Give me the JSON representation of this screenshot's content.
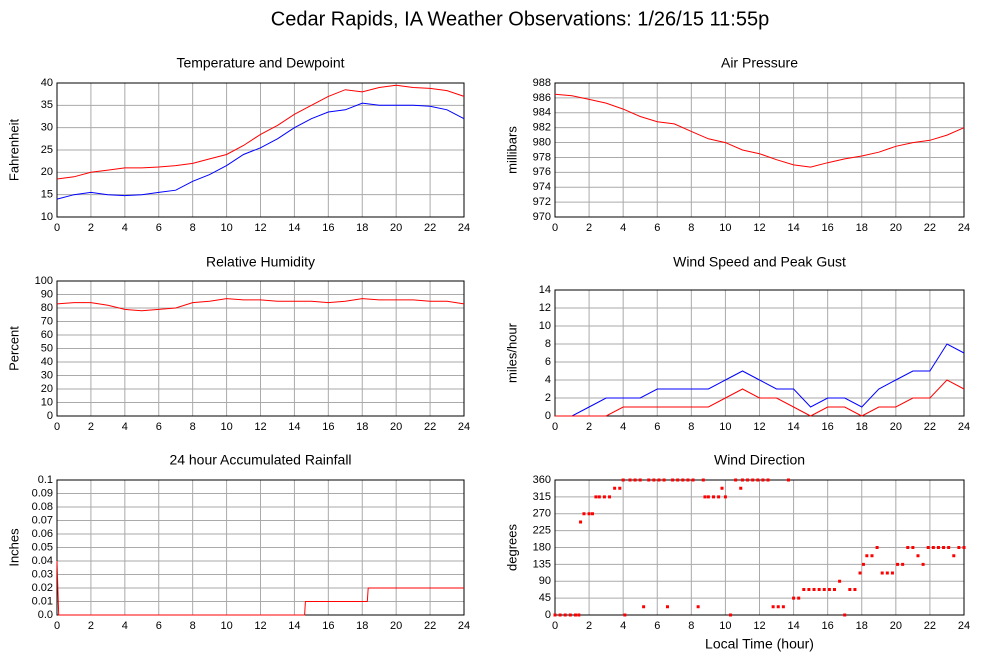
{
  "title": "Cedar Rapids, IA Weather Observations: 1/26/15 11:55p",
  "chart_data": [
    {
      "type": "line",
      "title": "Temperature and Dewpoint",
      "ylabel": "Fahrenheit",
      "xlim": [
        0,
        24
      ],
      "xticks": [
        0,
        2,
        4,
        6,
        8,
        10,
        12,
        14,
        16,
        18,
        20,
        22,
        24
      ],
      "ylim": [
        10,
        40
      ],
      "yticks": [
        10,
        15,
        20,
        25,
        30,
        35,
        40
      ],
      "grid": true,
      "x": [
        0,
        1,
        2,
        3,
        4,
        5,
        6,
        7,
        8,
        9,
        10,
        11,
        12,
        13,
        14,
        15,
        16,
        17,
        18,
        19,
        20,
        21,
        22,
        23,
        24
      ],
      "series": [
        {
          "color": "#ff0000",
          "values": [
            18.5,
            19,
            20,
            20.5,
            21,
            21,
            21.2,
            21.5,
            22,
            23,
            24,
            26,
            28.5,
            30.5,
            33,
            35,
            37,
            38.5,
            38,
            39,
            39.5,
            39,
            38.8,
            38.3,
            37
          ]
        },
        {
          "color": "#0000ff",
          "values": [
            14,
            15,
            15.5,
            15,
            14.8,
            15,
            15.5,
            16,
            18,
            19.5,
            21.5,
            24,
            25.5,
            27.5,
            30,
            32,
            33.5,
            34,
            35.5,
            35,
            35,
            35,
            34.8,
            34,
            32
          ]
        }
      ]
    },
    {
      "type": "line",
      "title": "Air Pressure",
      "ylabel": "millibars",
      "xlim": [
        0,
        24
      ],
      "xticks": [
        0,
        2,
        4,
        6,
        8,
        10,
        12,
        14,
        16,
        18,
        20,
        22,
        24
      ],
      "ylim": [
        970,
        988
      ],
      "yticks": [
        970,
        972,
        974,
        976,
        978,
        980,
        982,
        984,
        986,
        988
      ],
      "grid": true,
      "x": [
        0,
        1,
        2,
        3,
        4,
        5,
        6,
        7,
        8,
        9,
        10,
        11,
        12,
        13,
        14,
        15,
        16,
        17,
        18,
        19,
        20,
        21,
        22,
        23,
        24
      ],
      "series": [
        {
          "color": "#ff0000",
          "values": [
            986.5,
            986.3,
            985.8,
            985.3,
            984.5,
            983.5,
            982.8,
            982.5,
            981.5,
            980.5,
            980,
            979,
            978.5,
            977.7,
            977,
            976.7,
            977.3,
            977.8,
            978.2,
            978.7,
            979.5,
            980,
            980.3,
            981,
            982
          ]
        }
      ]
    },
    {
      "type": "line",
      "title": "Relative Humidity",
      "ylabel": "Percent",
      "xlim": [
        0,
        24
      ],
      "xticks": [
        0,
        2,
        4,
        6,
        8,
        10,
        12,
        14,
        16,
        18,
        20,
        22,
        24
      ],
      "ylim": [
        0,
        100
      ],
      "yticks": [
        0,
        10,
        20,
        30,
        40,
        50,
        60,
        70,
        80,
        90,
        100
      ],
      "grid": true,
      "x": [
        0,
        1,
        2,
        3,
        4,
        5,
        6,
        7,
        8,
        9,
        10,
        11,
        12,
        13,
        14,
        15,
        16,
        17,
        18,
        19,
        20,
        21,
        22,
        23,
        24
      ],
      "series": [
        {
          "color": "#ff0000",
          "values": [
            83,
            84,
            84,
            82,
            79,
            78,
            79,
            80,
            84,
            85,
            87,
            86,
            86,
            85,
            85,
            85,
            84,
            85,
            87,
            86,
            86,
            86,
            85,
            85,
            83
          ]
        }
      ]
    },
    {
      "type": "line",
      "title": "Wind Speed and Peak Gust",
      "ylabel": "miles/hour",
      "xlim": [
        0,
        24
      ],
      "xticks": [
        0,
        2,
        4,
        6,
        8,
        10,
        12,
        14,
        16,
        18,
        20,
        22,
        24
      ],
      "ylim": [
        0,
        14
      ],
      "yticks": [
        0,
        2,
        4,
        6,
        8,
        10,
        12,
        14
      ],
      "grid": true,
      "x": [
        0,
        1,
        2,
        3,
        4,
        5,
        6,
        7,
        8,
        9,
        10,
        11,
        12,
        13,
        14,
        15,
        16,
        17,
        18,
        19,
        20,
        21,
        22,
        23,
        24
      ],
      "series": [
        {
          "color": "#0000ff",
          "values": [
            0,
            0,
            1,
            2,
            2,
            2,
            3,
            3,
            3,
            3,
            4,
            5,
            4,
            3,
            3,
            1,
            2,
            2,
            1,
            3,
            4,
            5,
            5,
            8,
            7
          ]
        },
        {
          "color": "#ff0000",
          "values": [
            0,
            0,
            0,
            0,
            1,
            1,
            1,
            1,
            1,
            1,
            2,
            3,
            2,
            2,
            1,
            0,
            1,
            1,
            0,
            1,
            1,
            2,
            2,
            4,
            3
          ]
        }
      ]
    },
    {
      "type": "line",
      "title": "24 hour Accumulated Rainfall",
      "ylabel": "Inches",
      "xlim": [
        0,
        24
      ],
      "xticks": [
        0,
        2,
        4,
        6,
        8,
        10,
        12,
        14,
        16,
        18,
        20,
        22,
        24
      ],
      "ylim": [
        0,
        0.1
      ],
      "yticks": [
        {
          "value": 0,
          "label": "0.0"
        },
        0.01,
        0.02,
        0.03,
        0.04,
        0.05,
        0.06,
        0.07,
        0.08,
        0.09,
        0.1
      ],
      "grid": true,
      "x": [
        0,
        0.1,
        14.6,
        14.65,
        18.3,
        18.35,
        24
      ],
      "series": [
        {
          "color": "#ff0000",
          "values": [
            0.04,
            0,
            0,
            0.01,
            0.01,
            0.02,
            0.02
          ]
        }
      ]
    },
    {
      "type": "scatter",
      "title": "Wind Direction",
      "ylabel": "degrees",
      "xlabel": "Local Time (hour)",
      "xlim": [
        0,
        24
      ],
      "xticks": [
        0,
        2,
        4,
        6,
        8,
        10,
        12,
        14,
        16,
        18,
        20,
        22,
        24
      ],
      "ylim": [
        0,
        360
      ],
      "yticks": [
        0,
        45,
        90,
        135,
        180,
        225,
        270,
        315,
        360
      ],
      "grid": true,
      "x": [
        0,
        0.3,
        0.6,
        0.9,
        1.2,
        1.4,
        1.5,
        1.7,
        2,
        2.2,
        2.4,
        2.6,
        2.9,
        3.2,
        3.5,
        3.8,
        4,
        4.1,
        4.4,
        4.7,
        5,
        5.2,
        5.5,
        5.8,
        6.1,
        6.4,
        6.6,
        6.9,
        7.2,
        7.5,
        7.8,
        8.1,
        8.4,
        8.7,
        8.8,
        9,
        9.3,
        9.6,
        9.8,
        10,
        10.3,
        10.6,
        10.9,
        11,
        11.3,
        11.6,
        11.9,
        12.2,
        12.5,
        12.8,
        13.1,
        13.4,
        13.7,
        14,
        14.3,
        14.6,
        14.9,
        15.2,
        15.5,
        15.8,
        16.1,
        16.4,
        16.7,
        17,
        17.3,
        17.6,
        17.9,
        18.1,
        18.3,
        18.6,
        18.9,
        19.2,
        19.5,
        19.8,
        20.1,
        20.4,
        20.7,
        21,
        21.3,
        21.6,
        21.9,
        22.2,
        22.5,
        22.8,
        23.1,
        23.4,
        23.7,
        24
      ],
      "series": [
        {
          "color": "#ff0000",
          "values": [
            0,
            0,
            0,
            0,
            0,
            0,
            248,
            270,
            270,
            270,
            315,
            315,
            315,
            315,
            338,
            338,
            360,
            0,
            360,
            360,
            360,
            22,
            360,
            360,
            360,
            360,
            22,
            360,
            360,
            360,
            360,
            360,
            22,
            360,
            315,
            315,
            315,
            315,
            338,
            315,
            0,
            360,
            338,
            360,
            360,
            360,
            360,
            360,
            360,
            22,
            22,
            22,
            360,
            45,
            45,
            68,
            68,
            68,
            68,
            68,
            68,
            68,
            90,
            0,
            68,
            68,
            112,
            135,
            158,
            158,
            180,
            112,
            112,
            112,
            135,
            135,
            180,
            180,
            158,
            135,
            180,
            180,
            180,
            180,
            180,
            158,
            180,
            180
          ]
        }
      ]
    }
  ]
}
